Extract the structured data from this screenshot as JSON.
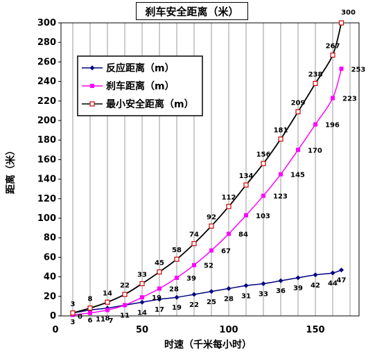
{
  "chart_data": {
    "type": "line",
    "title": "刹车安全距离（米）",
    "xlabel": "时速（千米每小时）",
    "ylabel": "距离（米）",
    "xlim": [
      0,
      175
    ],
    "ylim": [
      0,
      300
    ],
    "x_ticks": [
      "0",
      "50",
      "100",
      "150"
    ],
    "y_ticks": [
      "0",
      "20",
      "40",
      "60",
      "80",
      "100",
      "120",
      "140",
      "160",
      "180",
      "200",
      "220",
      "240",
      "260",
      "280",
      "300"
    ],
    "grid": {
      "vertical": true,
      "horizontal": false
    },
    "legend_position": "top-left",
    "x": [
      10,
      20,
      30,
      40,
      50,
      60,
      70,
      80,
      90,
      100,
      110,
      120,
      130,
      140,
      150,
      160,
      165
    ],
    "series": [
      {
        "name": "反应距离（m）",
        "color": "#000080",
        "marker": "diamond",
        "values": [
          3,
          6,
          8,
          11,
          14,
          17,
          19,
          22,
          25,
          28,
          31,
          33,
          36,
          39,
          42,
          44,
          47
        ],
        "labels": [
          "3",
          "6",
          "8",
          "11",
          "14",
          "17",
          "19",
          "22",
          "25",
          "28",
          "31",
          "33",
          "36",
          "39",
          "42",
          "44",
          "47"
        ]
      },
      {
        "name": "刹车距离（m）",
        "color": "#ff00ff",
        "marker": "square",
        "values": [
          1,
          3,
          6,
          11,
          19,
          28,
          39,
          52,
          67,
          84,
          103,
          123,
          145,
          170,
          196,
          223,
          253
        ],
        "labels": [
          "",
          "",
          "",
          "",
          "19",
          "28",
          "39",
          "52",
          "67",
          "84",
          "103",
          "123",
          "145",
          "170",
          "196",
          "223",
          "253"
        ]
      },
      {
        "name": "最小安全距离（m）",
        "color": "#000000",
        "marker": "open-square",
        "marker_color": "#cc0000",
        "values": [
          3,
          8,
          14,
          22,
          33,
          45,
          58,
          74,
          92,
          112,
          134,
          156,
          181,
          209,
          238,
          267,
          300
        ],
        "labels": [
          "3",
          "8",
          "14",
          "22",
          "33",
          "45",
          "58",
          "74",
          "92",
          "112",
          "134",
          "156",
          "181",
          "209",
          "238",
          "267",
          "300"
        ]
      }
    ],
    "extra_labels": [
      "0",
      "7",
      "11"
    ]
  }
}
